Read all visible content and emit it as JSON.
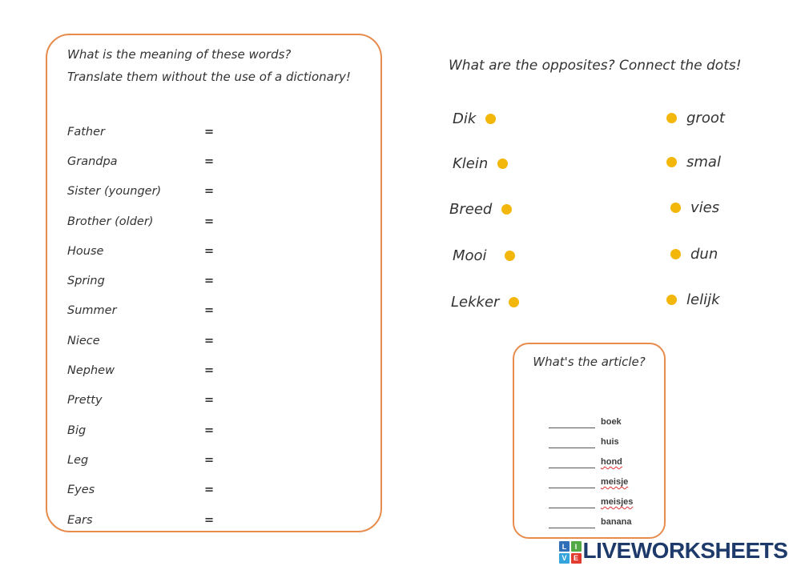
{
  "translate_box": {
    "header_line1": "What is the meaning of these words?",
    "header_line2": "Translate them without the use of a dictionary!",
    "equals": "=",
    "words": [
      "Father",
      "Grandpa",
      "Sister (younger)",
      "Brother (older)",
      "House",
      "Spring",
      "Summer",
      "Niece",
      "Nephew",
      "Pretty",
      "Big",
      "Leg",
      "Eyes",
      "Ears"
    ]
  },
  "opposites": {
    "title": "What are the opposites? Connect the dots!",
    "left_words": [
      "Dik",
      "Klein",
      "Breed",
      "Mooi",
      "Lekker"
    ],
    "right_words": [
      "groot",
      "smal",
      "vies",
      "dun",
      "lelijk"
    ],
    "dot_color": "#F3B70C"
  },
  "article_box": {
    "title": "What's the article?",
    "items": [
      {
        "word": "boek",
        "misspelled": false
      },
      {
        "word": "huis",
        "misspelled": false
      },
      {
        "word": "hond",
        "misspelled": true
      },
      {
        "word": "meisje",
        "misspelled": true
      },
      {
        "word": "meisjes",
        "misspelled": true
      },
      {
        "word": "banana",
        "misspelled": false
      }
    ]
  },
  "logo": {
    "text": "LIVEWORKSHEETS",
    "text_color": "#1D3A6B",
    "tiles": [
      {
        "letter": "L",
        "color": "#2F6FB8"
      },
      {
        "letter": "I",
        "color": "#52A946"
      },
      {
        "letter": "V",
        "color": "#35A3DC"
      },
      {
        "letter": "E",
        "color": "#E23B30"
      }
    ]
  },
  "colors": {
    "border_orange": "#E78C4D",
    "dot_yellow": "#F3B70C"
  }
}
